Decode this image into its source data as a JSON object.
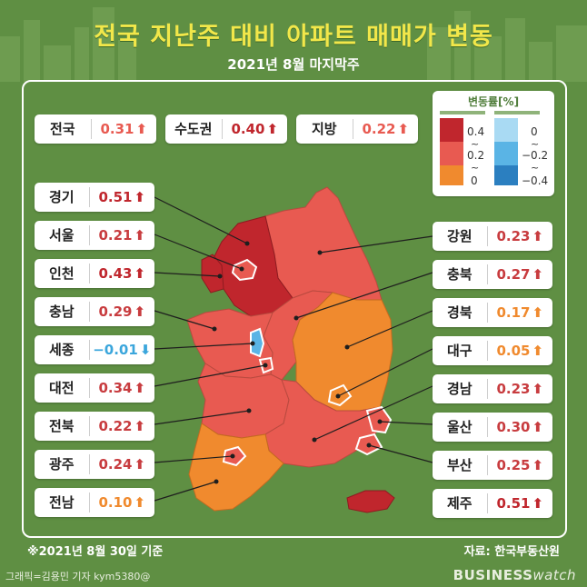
{
  "header": {
    "title": "전국 지난주 대비 아파트 매매가 변동",
    "subtitle": "2021년 8월 마지막주"
  },
  "colors": {
    "background": "#5f8f43",
    "title": "#f2e74a",
    "up_high": "#c0262d",
    "up_mid": "#e85a51",
    "up_low": "#f08a2e",
    "down": "#5ab4e5",
    "text_up": "#c83c3f",
    "text_low": "#f08a2e",
    "text_down": "#3ba6dc"
  },
  "summary": [
    {
      "name": "전국",
      "value": "0.31",
      "dir": "up",
      "tone": "mid"
    },
    {
      "name": "수도권",
      "value": "0.40",
      "dir": "up",
      "tone": "high"
    },
    {
      "name": "지방",
      "value": "0.22",
      "dir": "up",
      "tone": "mid"
    }
  ],
  "legend": {
    "title": "변동률[%]",
    "up_labels": [
      "0.4",
      "~",
      "0.2",
      "~",
      "0"
    ],
    "down_labels": [
      "0",
      "~",
      "−0.2",
      "~",
      "−0.4"
    ]
  },
  "regions_left": [
    {
      "name": "경기",
      "value": "0.51",
      "dir": "up",
      "tone": "high"
    },
    {
      "name": "서울",
      "value": "0.21",
      "dir": "up",
      "tone": "mid"
    },
    {
      "name": "인천",
      "value": "0.43",
      "dir": "up",
      "tone": "high"
    },
    {
      "name": "충남",
      "value": "0.29",
      "dir": "up",
      "tone": "mid"
    },
    {
      "name": "세종",
      "value": "−0.01",
      "dir": "down",
      "tone": "down"
    },
    {
      "name": "대전",
      "value": "0.34",
      "dir": "up",
      "tone": "mid"
    },
    {
      "name": "전북",
      "value": "0.22",
      "dir": "up",
      "tone": "mid"
    },
    {
      "name": "광주",
      "value": "0.24",
      "dir": "up",
      "tone": "mid"
    },
    {
      "name": "전남",
      "value": "0.10",
      "dir": "up",
      "tone": "low"
    }
  ],
  "regions_right": [
    {
      "name": "강원",
      "value": "0.23",
      "dir": "up",
      "tone": "mid"
    },
    {
      "name": "충북",
      "value": "0.27",
      "dir": "up",
      "tone": "mid"
    },
    {
      "name": "경북",
      "value": "0.17",
      "dir": "up",
      "tone": "low"
    },
    {
      "name": "대구",
      "value": "0.05",
      "dir": "up",
      "tone": "low"
    },
    {
      "name": "경남",
      "value": "0.23",
      "dir": "up",
      "tone": "mid"
    },
    {
      "name": "울산",
      "value": "0.30",
      "dir": "up",
      "tone": "mid"
    },
    {
      "name": "부산",
      "value": "0.25",
      "dir": "up",
      "tone": "mid"
    },
    {
      "name": "제주",
      "value": "0.51",
      "dir": "up",
      "tone": "high"
    }
  ],
  "footer": {
    "note": "※2021년 8월 30일 기준",
    "source": "자료: 한국부동산원",
    "credit": "그래픽=김용민 기자 kym5380@",
    "brand_bold": "BUSINESS",
    "brand_light": "watch"
  }
}
